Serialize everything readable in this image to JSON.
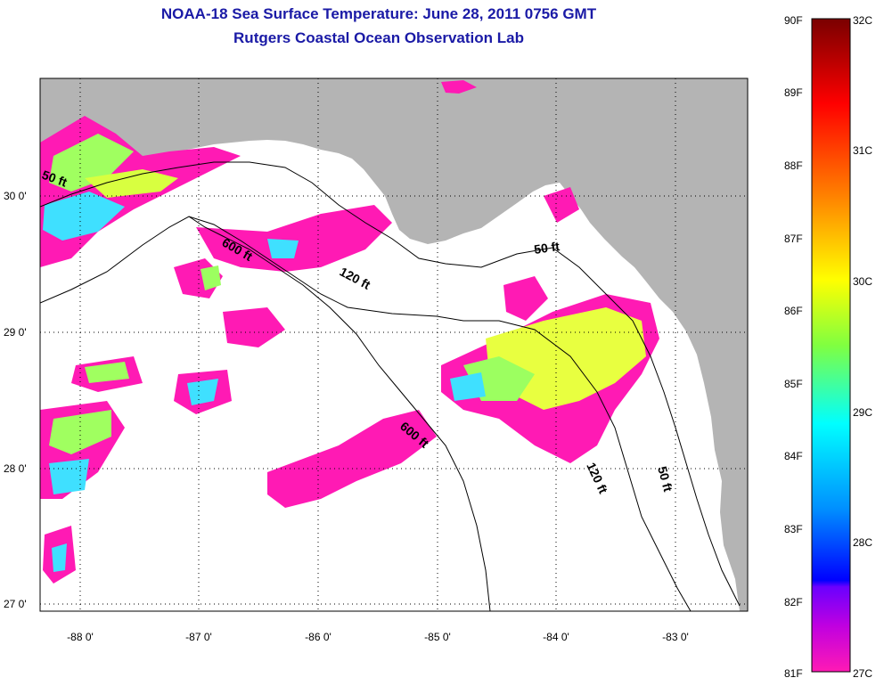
{
  "header": {
    "title": "NOAA-18 Sea Surface Temperature:  June 28, 2011 0756 GMT",
    "subtitle": "Rutgers Coastal Ocean Observation Lab"
  },
  "map": {
    "lat_ticks": [
      "30 0'",
      "29 0'",
      "28 0'",
      "27 0'"
    ],
    "lon_ticks": [
      "-88 0'",
      "-87 0'",
      "-86 0'",
      "-85 0'",
      "-84 0'",
      "-83 0'"
    ],
    "contour_labels": [
      "50 ft",
      "600 ft",
      "120 ft",
      "50 ft",
      "600 ft",
      "120 ft",
      "50 ft"
    ],
    "colors": {
      "land": "#b4b4b4",
      "water": "#ffffff",
      "cold": "#ff1ab4",
      "contour": "#000000"
    }
  },
  "colorbar": {
    "f_labels": [
      "90F",
      "89F",
      "88F",
      "87F",
      "86F",
      "85F",
      "84F",
      "83F",
      "82F",
      "81F"
    ],
    "c_labels": [
      "32C",
      "31C",
      "30C",
      "29C",
      "28C",
      "27C"
    ],
    "stops": [
      "#7a0000",
      "#ff0000",
      "#ff7f00",
      "#ffff00",
      "#80ff40",
      "#00ffff",
      "#0080ff",
      "#0000ff",
      "#8000ff",
      "#ff1ab4"
    ]
  }
}
